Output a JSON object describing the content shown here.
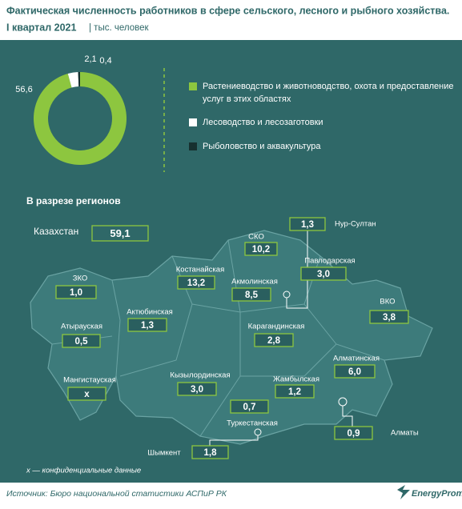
{
  "header": {
    "title": "Фактическая численность работников в сфере сельского, лесного и рыбного хозяйства.",
    "period": "I квартал 2021",
    "unit": "| тыс. человек"
  },
  "chart_data": {
    "type": "pie",
    "donut": true,
    "categories": [
      "Растениеводство и животноводство, охота и предоставление услуг в этих областях",
      "Лесоводство и лесозаготовки",
      "Рыболовство и аквакультура"
    ],
    "values": [
      56.6,
      2.1,
      0.4
    ],
    "value_labels": [
      "56,6",
      "2,1",
      "0,4"
    ],
    "colors": [
      "#8dc63f",
      "#ffffff",
      "#17302f"
    ]
  },
  "regions_title": "В разрезе регионов",
  "regions": [
    {
      "name": "Казахстан",
      "value": "59,1"
    },
    {
      "name": "ЗКО",
      "value": "1,0"
    },
    {
      "name": "Атырауская",
      "value": "0,5"
    },
    {
      "name": "Мангистауская",
      "value": "x"
    },
    {
      "name": "Актюбинская",
      "value": "1,3"
    },
    {
      "name": "Костанайская",
      "value": "13,2"
    },
    {
      "name": "СКО",
      "value": "10,2"
    },
    {
      "name": "Акмолинская",
      "value": "8,5"
    },
    {
      "name": "Нур-Султан",
      "value": "1,3"
    },
    {
      "name": "Павлодарская",
      "value": "3,0"
    },
    {
      "name": "ВКО",
      "value": "3,8"
    },
    {
      "name": "Карагандинская",
      "value": "2,8"
    },
    {
      "name": "Алматинская",
      "value": "6,0"
    },
    {
      "name": "Жамбылская",
      "value": "1,2"
    },
    {
      "name": "Кызылординская",
      "value": "3,0"
    },
    {
      "name": "Туркестанская",
      "value": "0,7"
    },
    {
      "name": "Шымкент",
      "value": "1,8"
    },
    {
      "name": "Алматы",
      "value": "0,9"
    }
  ],
  "footnote": "x — конфиденциальные данные",
  "footer": {
    "source": "Источник: Бюро национальной статистики АСПиР РК",
    "brand": "EnergyProm"
  }
}
